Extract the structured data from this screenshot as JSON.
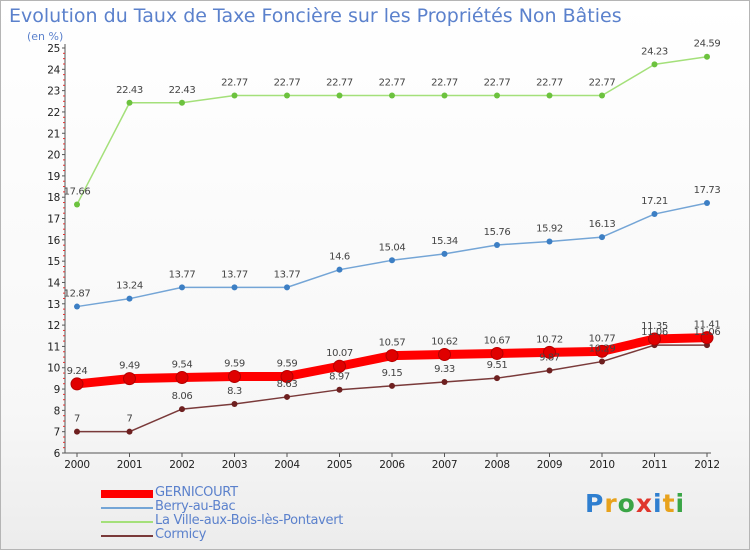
{
  "title": "Evolution du Taux de Taxe Foncière sur les Propriétés Non Bâties",
  "subtitle": "(en %)",
  "brand": {
    "letters": [
      "P",
      "r",
      "o",
      "x",
      "i",
      "t",
      "i"
    ],
    "colors": [
      "#2f7fd0",
      "#e8a21c",
      "#3aa546",
      "#e0362c",
      "#2f7fd0",
      "#e8a21c",
      "#3aa546"
    ]
  },
  "chart_data": {
    "type": "line",
    "x": [
      "2000",
      "2001",
      "2002",
      "2003",
      "2004",
      "2005",
      "2006",
      "2007",
      "2008",
      "2009",
      "2010",
      "2011",
      "2012"
    ],
    "ylim": [
      6,
      25
    ],
    "yticks": [
      "6",
      "7",
      "8",
      "9",
      "10",
      "11",
      "12",
      "13",
      "14",
      "15",
      "16",
      "17",
      "18",
      "19",
      "20",
      "21",
      "22",
      "23",
      "24",
      "25"
    ],
    "grid": false,
    "legend_position": "bottom-left",
    "series": [
      {
        "name": "GERNICOURT",
        "color": "#ff0000",
        "marker_color": "#e00000",
        "bold": true,
        "values": [
          9.24,
          9.49,
          9.54,
          9.59,
          9.59,
          10.07,
          10.57,
          10.62,
          10.67,
          10.72,
          10.77,
          11.35,
          11.41
        ],
        "labels": [
          "9.24",
          "9.49",
          "9.54",
          "9.59",
          "9.59",
          "10.07",
          "10.57",
          "10.62",
          "10.67",
          "10.72",
          "10.77",
          "11.35",
          "11.41"
        ]
      },
      {
        "name": "Berry-au-Bac",
        "color": "#74a5d6",
        "marker_color": "#3d7fc4",
        "bold": false,
        "values": [
          12.87,
          13.24,
          13.77,
          13.77,
          13.77,
          14.6,
          15.04,
          15.34,
          15.76,
          15.92,
          16.13,
          17.21,
          17.73
        ],
        "labels": [
          "12.87",
          "13.24",
          "13.77",
          "13.77",
          "13.77",
          "14.6",
          "15.04",
          "15.34",
          "15.76",
          "15.92",
          "16.13",
          "17.21",
          "17.73"
        ]
      },
      {
        "name": "La Ville-aux-Bois-lès-Pontavert",
        "color": "#a4e07a",
        "marker_color": "#6cc23e",
        "bold": false,
        "values": [
          17.66,
          22.43,
          22.43,
          22.77,
          22.77,
          22.77,
          22.77,
          22.77,
          22.77,
          22.77,
          22.77,
          24.23,
          24.59
        ],
        "labels": [
          "17.66",
          "22.43",
          "22.43",
          "22.77",
          "22.77",
          "22.77",
          "22.77",
          "22.77",
          "22.77",
          "22.77",
          "22.77",
          "24.23",
          "24.59"
        ]
      },
      {
        "name": "Cormicy",
        "color": "#7a3a3a",
        "marker_color": "#6e2020",
        "bold": false,
        "values": [
          7,
          7,
          8.06,
          8.3,
          8.63,
          8.97,
          9.15,
          9.33,
          9.51,
          9.87,
          10.29,
          11.06,
          11.06
        ],
        "labels": [
          "7",
          "7",
          "8.06",
          "8.3",
          "8.63",
          "8.97",
          "9.15",
          "9.33",
          "9.51",
          "9.87",
          "10.29",
          "11.06",
          "11.06"
        ]
      }
    ]
  }
}
